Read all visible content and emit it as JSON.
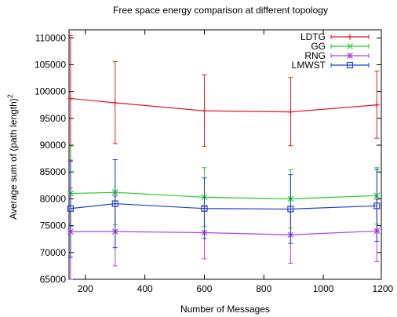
{
  "chart_data": {
    "type": "line",
    "title": "Free space energy comparison at different topology",
    "xlabel": "Number of Messages",
    "ylabel": "Average sum of (path length)",
    "ylabel_superscript": "2",
    "xlim": [
      145,
      1195
    ],
    "ylim": [
      65000,
      111500
    ],
    "xticks": [
      200,
      400,
      600,
      800,
      1000,
      1200
    ],
    "xtick_labels": [
      "200",
      "400",
      "600",
      "800",
      "1000",
      "1200"
    ],
    "yticks": [
      65000,
      70000,
      75000,
      80000,
      85000,
      90000,
      95000,
      100000,
      105000,
      110000
    ],
    "ytick_labels": [
      "65000",
      "70000",
      "75000",
      "80000",
      "85000",
      "90000",
      "95000",
      "100000",
      "105000",
      "110000"
    ],
    "grid": false,
    "legend_position": "top-right",
    "x": [
      150,
      300,
      600,
      890,
      1180
    ],
    "series": [
      {
        "name": "LDTG",
        "color": "#e41a1c",
        "marker": "plus",
        "values": [
          98700,
          97900,
          96400,
          96200,
          97500
        ],
        "err_low": [
          87000,
          90300,
          89800,
          89900,
          91300
        ],
        "err_high": [
          110400,
          105600,
          103100,
          102600,
          103800
        ]
      },
      {
        "name": "GG",
        "color": "#22cc22",
        "marker": "x",
        "values": [
          81000,
          81200,
          80300,
          80000,
          80600
        ],
        "err_low": [
          74800,
          75200,
          74900,
          74600,
          75300
        ],
        "err_high": [
          89800,
          87300,
          85800,
          85400,
          85800
        ]
      },
      {
        "name": "RNG",
        "color": "#b040e0",
        "marker": "star",
        "values": [
          73900,
          73900,
          73700,
          73300,
          74000
        ],
        "err_low": [
          65000,
          67500,
          68800,
          68000,
          68300
        ],
        "err_high": [
          82000,
          80500,
          78600,
          78600,
          79900
        ]
      },
      {
        "name": "LMWST",
        "color": "#1f3fd6",
        "marker": "square",
        "values": [
          78200,
          79100,
          78200,
          78100,
          78700
        ],
        "err_low": [
          69100,
          70900,
          72600,
          71700,
          72100
        ],
        "err_high": [
          87200,
          87300,
          83900,
          84500,
          85500
        ]
      }
    ]
  }
}
